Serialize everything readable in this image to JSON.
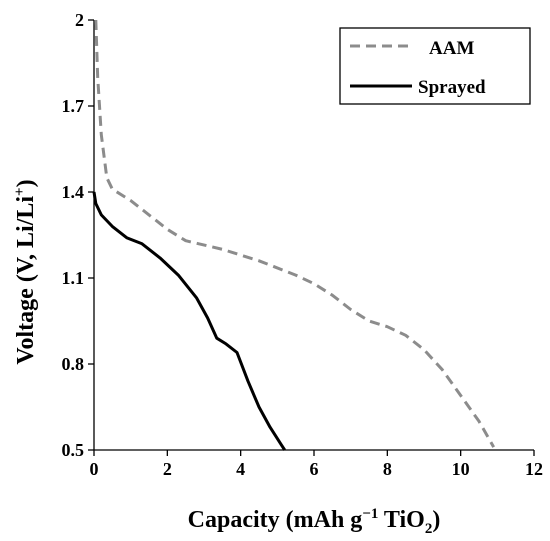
{
  "chart_data": {
    "type": "line",
    "xlabel_main": "Capacity (mAh g",
    "xlabel_sup": "−1",
    "xlabel_mid": " TiO",
    "xlabel_sub": "2",
    "xlabel_end": ")",
    "ylabel_main": "Voltage (V, Li/Li",
    "ylabel_sup": "+",
    "ylabel_end": ")",
    "xlim": [
      0,
      12
    ],
    "ylim": [
      0.5,
      2
    ],
    "xticks": [
      0,
      2,
      4,
      6,
      8,
      10,
      12
    ],
    "yticks": [
      0.5,
      0.8,
      1.1,
      1.4,
      1.7,
      2
    ],
    "ytick_labels": [
      "0.5",
      "0.8",
      "1.1",
      "1.4",
      "1.7",
      "2"
    ],
    "grid": false,
    "legend_position": "top-right",
    "series": [
      {
        "name": "AAM",
        "color": "#8c8c8c",
        "dash": "dashed",
        "x": [
          0.05,
          0.1,
          0.2,
          0.35,
          0.5,
          1.0,
          1.5,
          2.0,
          2.5,
          3.5,
          4.5,
          5.5,
          6.0,
          6.5,
          7.0,
          7.5,
          8.0,
          8.5,
          9.0,
          9.5,
          10.0,
          10.5,
          10.9
        ],
        "y": [
          2.0,
          1.8,
          1.6,
          1.45,
          1.41,
          1.37,
          1.32,
          1.27,
          1.23,
          1.2,
          1.16,
          1.11,
          1.08,
          1.04,
          0.99,
          0.95,
          0.93,
          0.9,
          0.85,
          0.78,
          0.69,
          0.6,
          0.51
        ]
      },
      {
        "name": "Sprayed",
        "color": "#000000",
        "dash": "solid",
        "x": [
          0.0,
          0.05,
          0.2,
          0.5,
          0.9,
          1.3,
          1.8,
          2.3,
          2.8,
          3.1,
          3.35,
          3.6,
          3.9,
          4.2,
          4.5,
          4.8,
          5.1,
          5.2
        ],
        "y": [
          1.4,
          1.36,
          1.32,
          1.28,
          1.24,
          1.22,
          1.17,
          1.11,
          1.03,
          0.96,
          0.89,
          0.87,
          0.84,
          0.74,
          0.65,
          0.58,
          0.52,
          0.5
        ]
      }
    ]
  }
}
